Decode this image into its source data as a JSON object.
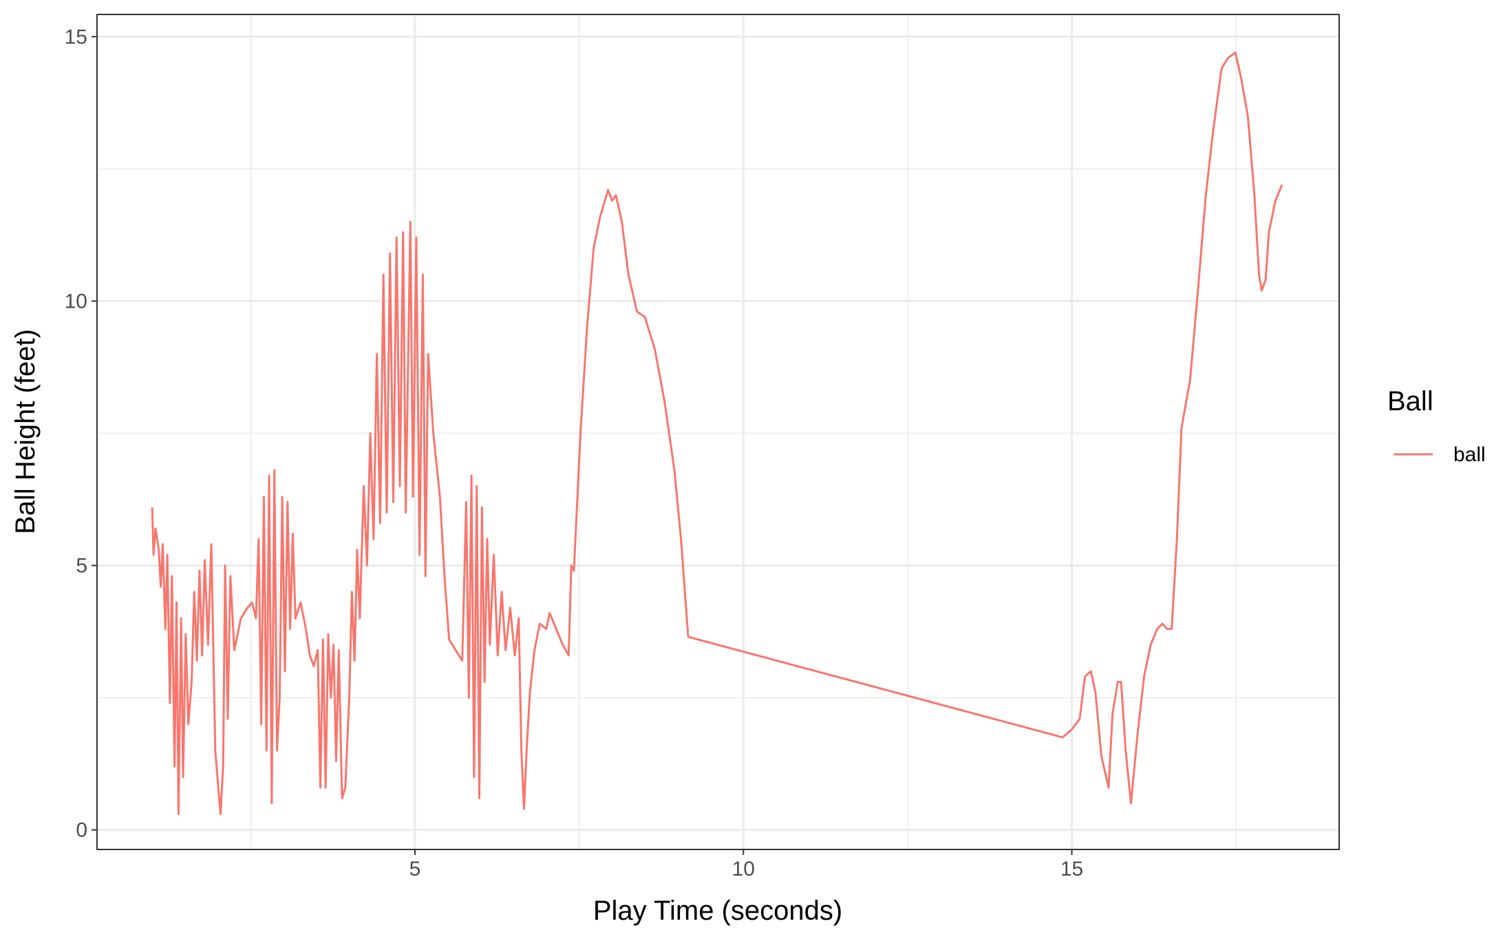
{
  "chart_data": {
    "type": "line",
    "x_label": "Play Time (seconds)",
    "y_label": "Ball Height (feet)",
    "legend_title": "Ball",
    "legend_position": "right",
    "xlim": [
      0.16,
      19.07
    ],
    "ylim": [
      -0.37,
      15.42
    ],
    "xticks": [
      5,
      10,
      15
    ],
    "yticks": [
      0,
      5,
      10,
      15
    ],
    "xminor": [
      2.5,
      7.5,
      12.5,
      17.5
    ],
    "yminor": [
      2.5,
      7.5,
      12.5
    ],
    "grid": true,
    "x": [
      1.0,
      1.02,
      1.05,
      1.1,
      1.13,
      1.16,
      1.2,
      1.23,
      1.27,
      1.3,
      1.34,
      1.37,
      1.4,
      1.44,
      1.47,
      1.51,
      1.55,
      1.6,
      1.64,
      1.68,
      1.72,
      1.76,
      1.8,
      1.85,
      1.9,
      1.96,
      2.04,
      2.08,
      2.11,
      2.15,
      2.19,
      2.25,
      2.35,
      2.45,
      2.52,
      2.58,
      2.62,
      2.66,
      2.7,
      2.74,
      2.78,
      2.82,
      2.86,
      2.9,
      2.94,
      2.98,
      3.02,
      3.06,
      3.1,
      3.14,
      3.18,
      3.26,
      3.34,
      3.4,
      3.46,
      3.52,
      3.56,
      3.6,
      3.64,
      3.68,
      3.72,
      3.76,
      3.8,
      3.84,
      3.89,
      3.94,
      4.0,
      4.04,
      4.08,
      4.12,
      4.16,
      4.22,
      4.27,
      4.32,
      4.37,
      4.42,
      4.47,
      4.52,
      4.57,
      4.62,
      4.67,
      4.72,
      4.77,
      4.82,
      4.86,
      4.93,
      4.97,
      5.02,
      5.07,
      5.12,
      5.16,
      5.2,
      5.28,
      5.38,
      5.45,
      5.52,
      5.62,
      5.72,
      5.78,
      5.82,
      5.86,
      5.9,
      5.94,
      5.98,
      6.02,
      6.06,
      6.1,
      6.14,
      6.2,
      6.26,
      6.32,
      6.38,
      6.45,
      6.52,
      6.58,
      6.62,
      6.66,
      6.7,
      6.75,
      6.82,
      6.9,
      7.0,
      7.05,
      7.15,
      7.25,
      7.34,
      7.38,
      7.42,
      7.52,
      7.62,
      7.72,
      7.82,
      7.94,
      8.0,
      8.06,
      8.15,
      8.25,
      8.38,
      8.5,
      8.65,
      8.8,
      8.95,
      9.05,
      9.16,
      14.86,
      15.0,
      15.12,
      15.2,
      15.29,
      15.36,
      15.45,
      15.56,
      15.62,
      15.7,
      15.75,
      15.82,
      15.9,
      16.0,
      16.1,
      16.2,
      16.3,
      16.38,
      16.45,
      16.52,
      16.6,
      16.67,
      16.8,
      16.92,
      17.04,
      17.15,
      17.28,
      17.38,
      17.49,
      17.58,
      17.68,
      17.78,
      17.85,
      17.89,
      17.95,
      18.0,
      18.1,
      18.2
    ],
    "series": [
      {
        "name": "ball",
        "color": "#F8766D",
        "values": [
          6.1,
          5.2,
          5.7,
          5.3,
          4.6,
          5.4,
          3.8,
          5.2,
          2.4,
          4.8,
          1.2,
          4.3,
          0.3,
          4.0,
          1.0,
          3.7,
          2.0,
          2.8,
          4.5,
          3.2,
          4.9,
          3.3,
          5.1,
          3.5,
          5.4,
          1.5,
          0.3,
          1.2,
          5.0,
          2.1,
          4.8,
          3.4,
          4.0,
          4.2,
          4.3,
          4.0,
          5.5,
          2.0,
          6.3,
          1.5,
          6.7,
          0.5,
          6.8,
          1.5,
          2.5,
          6.3,
          3.0,
          6.2,
          3.8,
          5.6,
          4.0,
          4.3,
          3.8,
          3.3,
          3.1,
          3.4,
          0.8,
          3.6,
          0.8,
          3.7,
          2.5,
          3.5,
          1.3,
          3.4,
          0.6,
          0.8,
          2.5,
          4.5,
          3.2,
          5.3,
          4.0,
          6.5,
          5.0,
          7.5,
          5.5,
          9.0,
          5.8,
          10.5,
          6.0,
          10.9,
          6.2,
          11.2,
          6.5,
          11.3,
          6.0,
          11.5,
          6.3,
          11.2,
          5.2,
          10.5,
          4.8,
          9.0,
          7.5,
          6.3,
          4.8,
          3.6,
          3.4,
          3.2,
          6.2,
          2.5,
          6.7,
          1.0,
          6.5,
          0.6,
          6.1,
          2.8,
          5.5,
          3.5,
          5.2,
          3.3,
          4.5,
          3.4,
          4.2,
          3.3,
          4.0,
          1.5,
          0.4,
          1.5,
          2.6,
          3.4,
          3.9,
          3.8,
          4.1,
          3.8,
          3.5,
          3.3,
          5.0,
          4.9,
          7.5,
          9.5,
          11.0,
          11.6,
          12.1,
          11.9,
          12.0,
          11.5,
          10.5,
          9.8,
          9.7,
          9.1,
          8.1,
          6.8,
          5.5,
          3.65,
          1.75,
          1.9,
          2.1,
          2.9,
          3.0,
          2.6,
          1.4,
          0.8,
          2.2,
          2.8,
          2.8,
          1.5,
          0.5,
          1.8,
          2.9,
          3.5,
          3.8,
          3.9,
          3.8,
          3.8,
          5.5,
          7.6,
          8.5,
          10.2,
          12.0,
          13.2,
          14.4,
          14.6,
          14.7,
          14.2,
          13.5,
          12.0,
          10.5,
          10.2,
          10.4,
          11.3,
          11.9,
          12.2
        ]
      }
    ]
  }
}
